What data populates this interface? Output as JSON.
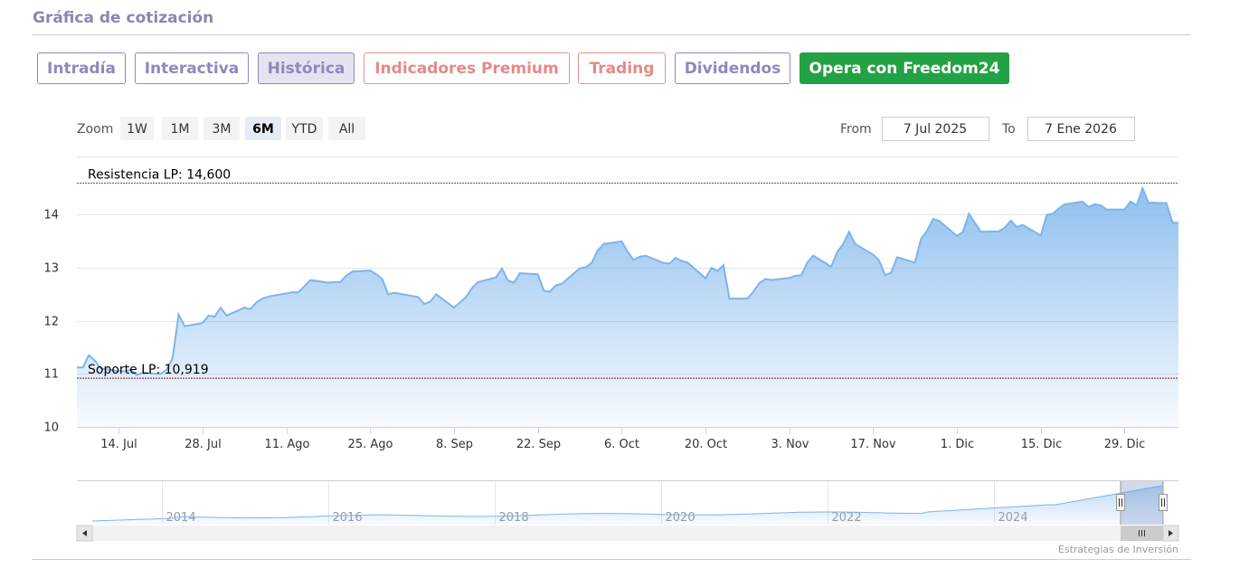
{
  "section_title": "Gráfica de cotización",
  "tabs": [
    {
      "label": "Intradía",
      "style": "purple",
      "active": false
    },
    {
      "label": "Interactiva",
      "style": "purple",
      "active": false
    },
    {
      "label": "Histórica",
      "style": "purple",
      "active": true
    },
    {
      "label": "Indicadores Premium",
      "style": "pink",
      "active": false
    },
    {
      "label": "Trading",
      "style": "pink",
      "active": false
    },
    {
      "label": "Dividendos",
      "style": "purple",
      "active": false
    },
    {
      "label": "Opera con Freedom24",
      "style": "green",
      "active": false
    }
  ],
  "range_selector": {
    "zoom_label": "Zoom",
    "buttons": [
      "1W",
      "1M",
      "3M",
      "6M",
      "YTD",
      "All"
    ],
    "selected": "6M",
    "from_label": "From",
    "from_value": "7 Jul 2025",
    "to_label": "To",
    "to_value": "7 Ene 2026"
  },
  "colors": {
    "series_line": "#7cb5ec",
    "resistance": "#1b7a1b",
    "support": "#8b1a2b",
    "active_tab_bg": "#e4e3f0",
    "green_button": "#23a245"
  },
  "chart_data": {
    "type": "area",
    "x_start": "2025-07-07",
    "x_end": "2026-01-07",
    "ylim": [
      10,
      15.1
    ],
    "yticks": [
      10,
      11,
      12,
      13,
      14
    ],
    "xticks": [
      {
        "date": "2025-07-14",
        "label": "14. Jul"
      },
      {
        "date": "2025-07-28",
        "label": "28. Jul"
      },
      {
        "date": "2025-08-11",
        "label": "11. Ago"
      },
      {
        "date": "2025-08-25",
        "label": "25. Ago"
      },
      {
        "date": "2025-09-08",
        "label": "8. Sep"
      },
      {
        "date": "2025-09-22",
        "label": "22. Sep"
      },
      {
        "date": "2025-10-06",
        "label": "6. Oct"
      },
      {
        "date": "2025-10-20",
        "label": "20. Oct"
      },
      {
        "date": "2025-11-03",
        "label": "3. Nov"
      },
      {
        "date": "2025-11-17",
        "label": "17. Nov"
      },
      {
        "date": "2025-12-01",
        "label": "1. Dic"
      },
      {
        "date": "2025-12-15",
        "label": "15. Dic"
      },
      {
        "date": "2025-12-29",
        "label": "29. Dic"
      }
    ],
    "series": [
      {
        "x": [
          "2025-07-07",
          "2025-07-08",
          "2025-07-09",
          "2025-07-10",
          "2025-07-11",
          "2025-07-14",
          "2025-07-15",
          "2025-07-16",
          "2025-07-17",
          "2025-07-18",
          "2025-07-21",
          "2025-07-22",
          "2025-07-23",
          "2025-07-24",
          "2025-07-25",
          "2025-07-28",
          "2025-07-29",
          "2025-07-30",
          "2025-07-31",
          "2025-08-01",
          "2025-08-04",
          "2025-08-05",
          "2025-08-06",
          "2025-08-07",
          "2025-08-08",
          "2025-08-11",
          "2025-08-12",
          "2025-08-13",
          "2025-08-14",
          "2025-08-15",
          "2025-08-18",
          "2025-08-19",
          "2025-08-20",
          "2025-08-21",
          "2025-08-22",
          "2025-08-25",
          "2025-08-26",
          "2025-08-27",
          "2025-08-28",
          "2025-08-29",
          "2025-09-01",
          "2025-09-02",
          "2025-09-03",
          "2025-09-04",
          "2025-09-05",
          "2025-09-08",
          "2025-09-09",
          "2025-09-10",
          "2025-09-11",
          "2025-09-12",
          "2025-09-15",
          "2025-09-16",
          "2025-09-17",
          "2025-09-18",
          "2025-09-19",
          "2025-09-22",
          "2025-09-23",
          "2025-09-24",
          "2025-09-25",
          "2025-09-26",
          "2025-09-29",
          "2025-09-30",
          "2025-10-01",
          "2025-10-02",
          "2025-10-03",
          "2025-10-06",
          "2025-10-07",
          "2025-10-08",
          "2025-10-09",
          "2025-10-10",
          "2025-10-13",
          "2025-10-14",
          "2025-10-15",
          "2025-10-16",
          "2025-10-17",
          "2025-10-20",
          "2025-10-21",
          "2025-10-22",
          "2025-10-23",
          "2025-10-24",
          "2025-10-27",
          "2025-10-28",
          "2025-10-29",
          "2025-10-30",
          "2025-10-31",
          "2025-11-03",
          "2025-11-04",
          "2025-11-05",
          "2025-11-06",
          "2025-11-07",
          "2025-11-10",
          "2025-11-11",
          "2025-11-12",
          "2025-11-13",
          "2025-11-14",
          "2025-11-17",
          "2025-11-18",
          "2025-11-19",
          "2025-11-20",
          "2025-11-21",
          "2025-11-24",
          "2025-11-25",
          "2025-11-26",
          "2025-11-27",
          "2025-11-28",
          "2025-12-01",
          "2025-12-02",
          "2025-12-03",
          "2025-12-04",
          "2025-12-05",
          "2025-12-08",
          "2025-12-09",
          "2025-12-10",
          "2025-12-11",
          "2025-12-12",
          "2025-12-15",
          "2025-12-16",
          "2025-12-17",
          "2025-12-18",
          "2025-12-19",
          "2025-12-22",
          "2025-12-23",
          "2025-12-24",
          "2025-12-25",
          "2025-12-26",
          "2025-12-29",
          "2025-12-30",
          "2025-12-31",
          "2026-01-01",
          "2026-01-02",
          "2026-01-05",
          "2026-01-06",
          "2026-01-07"
        ],
        "values": [
          11.12,
          11.12,
          11.35,
          11.25,
          11.1,
          11.05,
          11.05,
          11.08,
          10.98,
          11.02,
          11.0,
          11.08,
          11.3,
          12.12,
          11.9,
          11.96,
          12.1,
          12.08,
          12.25,
          12.1,
          12.25,
          12.22,
          12.35,
          12.42,
          12.46,
          12.52,
          12.54,
          12.54,
          12.65,
          12.77,
          12.72,
          12.73,
          12.73,
          12.85,
          12.93,
          12.95,
          12.88,
          12.79,
          12.5,
          12.53,
          12.47,
          12.45,
          12.32,
          12.36,
          12.5,
          12.25,
          12.35,
          12.45,
          12.62,
          12.73,
          12.82,
          12.99,
          12.76,
          12.72,
          12.9,
          12.88,
          12.57,
          12.55,
          12.67,
          12.7,
          12.99,
          13.01,
          13.1,
          13.33,
          13.45,
          13.5,
          13.3,
          13.15,
          13.21,
          13.23,
          13.09,
          13.08,
          13.19,
          13.13,
          13.1,
          12.8,
          13.0,
          12.94,
          13.05,
          12.42,
          12.42,
          12.55,
          12.71,
          12.79,
          12.77,
          12.81,
          12.85,
          12.86,
          13.1,
          13.23,
          13.02,
          13.3,
          13.45,
          13.68,
          13.45,
          13.25,
          13.14,
          12.86,
          12.91,
          13.2,
          13.1,
          13.55,
          13.7,
          13.92,
          13.89,
          13.6,
          13.68,
          14.02,
          13.85,
          13.68,
          13.69,
          13.76,
          13.89,
          13.77,
          13.81,
          13.61,
          14.0,
          14.02,
          14.12,
          14.2,
          14.25,
          14.15,
          14.2,
          14.18,
          14.1,
          14.1,
          14.25,
          14.18,
          14.5,
          14.23,
          14.22,
          13.85,
          13.85
        ]
      }
    ],
    "annotations": [
      {
        "label": "Resistencia LP: 14,600",
        "value": 14.6,
        "color": "#1b7a1b"
      },
      {
        "label": "Soporte LP: 10,919",
        "value": 10.919,
        "color": "#8b1a2b"
      }
    ],
    "navigator": {
      "year_labels": [
        "2014",
        "2016",
        "2018",
        "2020",
        "2022",
        "2024"
      ]
    },
    "credits": "Estrategias de Inversión",
    "grid": true
  }
}
